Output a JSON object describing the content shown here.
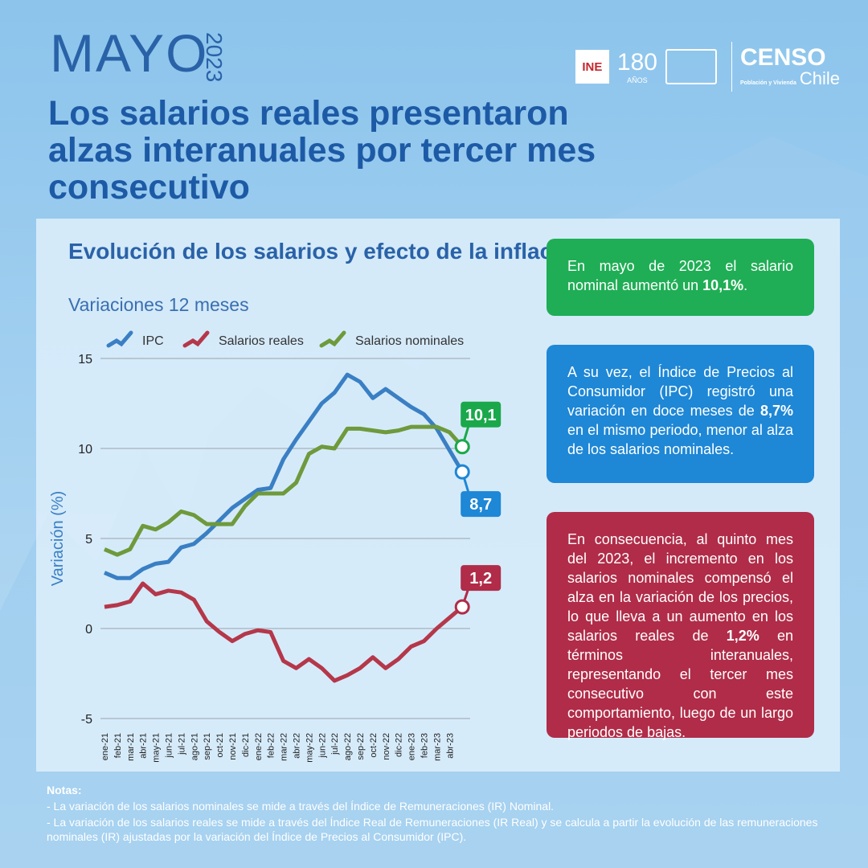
{
  "header": {
    "month": "MAYO",
    "year": "2023",
    "title": "Los salarios reales presentaron alzas interanuales por tercer mes consecutivo"
  },
  "logos": {
    "ine": "INE",
    "anniversary": "180",
    "anniversary_sub": "AÑOS",
    "censo": "CENSO",
    "censo_sub": "Población y Vivienda",
    "censo_country": "Chile"
  },
  "chart_data": {
    "type": "line",
    "title": "Evolución de los salarios y efecto de la inflación",
    "subtitle": "Variaciones 12 meses",
    "y_label": "Variación (%)",
    "categories": [
      "ene-21",
      "feb-21",
      "mar-21",
      "abr-21",
      "may-21",
      "jun-21",
      "jul-21",
      "ago-21",
      "sep-21",
      "oct-21",
      "nov-21",
      "dic-21",
      "ene-22",
      "feb-22",
      "mar-22",
      "abr-22",
      "may-22",
      "jun-22",
      "jul-22",
      "ago-22",
      "sep-22",
      "oct-22",
      "nov-22",
      "dic-22",
      "ene-23",
      "feb-23",
      "mar-23",
      "abr-23",
      null
    ],
    "series": [
      {
        "name": "IPC",
        "color": "#3a7fc4",
        "values": [
          3.1,
          2.8,
          2.8,
          3.3,
          3.6,
          3.7,
          4.5,
          4.7,
          5.3,
          6.0,
          6.7,
          7.2,
          7.7,
          7.8,
          9.4,
          10.5,
          11.5,
          12.5,
          13.1,
          14.1,
          13.7,
          12.8,
          13.3,
          12.8,
          12.3,
          11.9,
          11.1,
          9.9,
          8.7
        ],
        "value_labels": [
          null,
          null,
          null,
          null,
          null,
          null,
          null,
          null,
          null,
          null,
          null,
          null,
          null,
          null,
          null,
          null,
          null,
          null,
          null,
          null,
          null,
          null,
          null,
          null,
          null,
          null,
          null,
          null,
          "8,7"
        ],
        "label_color": "#1e87d6"
      },
      {
        "name": "Salarios reales",
        "color": "#b5374a",
        "values": [
          1.2,
          1.3,
          1.5,
          2.5,
          1.9,
          2.1,
          2.0,
          1.6,
          0.4,
          -0.2,
          -0.7,
          -0.3,
          -0.1,
          -0.2,
          -1.8,
          -2.2,
          -1.7,
          -2.2,
          -2.9,
          -2.6,
          -2.2,
          -1.6,
          -2.2,
          -1.7,
          -1.0,
          -0.7,
          0.0,
          0.6,
          1.2
        ],
        "value_labels": [
          null,
          null,
          null,
          null,
          null,
          null,
          null,
          null,
          null,
          null,
          null,
          null,
          null,
          null,
          null,
          null,
          null,
          null,
          null,
          null,
          null,
          null,
          null,
          null,
          null,
          null,
          null,
          null,
          "1,2"
        ],
        "label_color": "#b02c48"
      },
      {
        "name": "Salarios nominales",
        "color": "#6e9a3c",
        "values": [
          4.4,
          4.1,
          4.4,
          5.7,
          5.5,
          5.9,
          6.5,
          6.3,
          5.8,
          5.8,
          5.8,
          6.8,
          7.5,
          7.5,
          7.5,
          8.1,
          9.7,
          10.1,
          10.0,
          11.1,
          11.1,
          11.0,
          10.9,
          11.0,
          11.2,
          11.2,
          11.2,
          10.9,
          10.1
        ],
        "value_labels": [
          null,
          null,
          null,
          null,
          null,
          null,
          null,
          null,
          null,
          null,
          null,
          null,
          null,
          null,
          null,
          null,
          null,
          null,
          null,
          null,
          null,
          null,
          null,
          null,
          null,
          null,
          null,
          null,
          "10,1"
        ],
        "label_color": "#1aa84a"
      }
    ],
    "ylim": [
      -5,
      15
    ],
    "yticks": [
      -5,
      0,
      5,
      10,
      15
    ],
    "grid": true
  },
  "boxes": [
    {
      "segments": [
        "En mayo de 2023 el salario nominal aumentó un ",
        "10,1%",
        "."
      ]
    },
    {
      "segments": [
        "A su vez, el Índice de Precios al Consumidor (IPC) registró una variación en doce meses de ",
        "8,7%",
        " en el mismo periodo, menor al alza de los salarios nominales."
      ]
    },
    {
      "segments": [
        "En consecuencia, al quinto mes del 2023, el incremento en los salarios nominales compensó el alza en la variación de los precios, lo que lleva a un aumento en los salarios reales de ",
        "1,2%",
        " en términos interanuales, representando el tercer mes consecutivo con este comportamiento, luego de un largo periodos de bajas."
      ]
    }
  ],
  "notes": {
    "title": "Notas:",
    "items": [
      "- La variación de los salarios nominales se mide a través del Índice de Remuneraciones (IR) Nominal.",
      "- La variación de los salarios reales se mide a través del Índice Real de Remuneraciones (IR Real) y se calcula a partir la evolución de las remuneraciones nominales (IR) ajustadas por la variación del Índice de Precios al Consumidor (IPC)."
    ]
  }
}
